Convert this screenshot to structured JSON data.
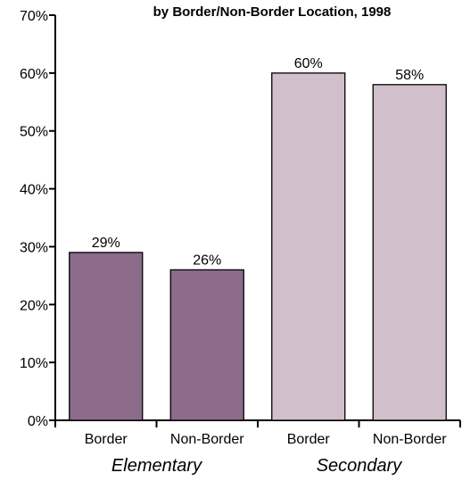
{
  "chart_data": {
    "type": "bar",
    "title": "by Border/Non-Border Location, 1998",
    "ylim": [
      0,
      70
    ],
    "y_ticks": [
      "0%",
      "10%",
      "20%",
      "30%",
      "40%",
      "50%",
      "60%",
      "70%"
    ],
    "categories": [
      "Border",
      "Non-Border",
      "Border",
      "Non-Border"
    ],
    "groups": [
      {
        "label": "Elementary",
        "color": "#8c6b8b"
      },
      {
        "label": "Secondary",
        "color": "#d1bfcb"
      }
    ],
    "values": [
      29,
      26,
      60,
      58
    ],
    "data_labels": [
      "29%",
      "26%",
      "60%",
      "58%"
    ],
    "bar_group": [
      0,
      0,
      1,
      1
    ],
    "grid": false,
    "legend": "none"
  }
}
